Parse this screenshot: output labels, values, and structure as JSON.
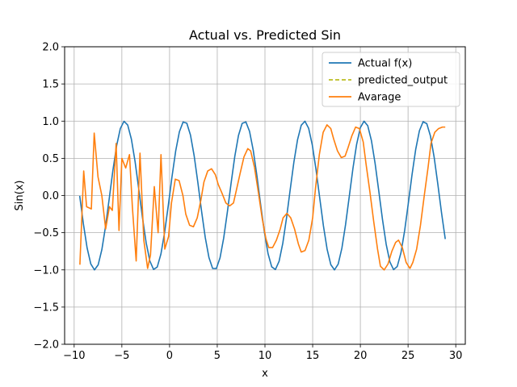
{
  "chart_data": {
    "type": "line",
    "title": "Actual vs. Predicted Sin",
    "xlabel": "x",
    "ylabel": "Sin(x)",
    "xlim": [
      -11.0,
      31.0
    ],
    "ylim": [
      -2.0,
      2.0
    ],
    "xticks": [
      -10,
      -5,
      0,
      5,
      10,
      15,
      20,
      25,
      30
    ],
    "yticks": [
      -2.0,
      -1.5,
      -1.0,
      -0.5,
      0.0,
      0.5,
      1.0,
      1.5,
      2.0
    ],
    "xtick_labels": [
      "−10",
      "−5",
      "0",
      "5",
      "10",
      "15",
      "20",
      "25",
      "30"
    ],
    "ytick_labels": [
      "−2.0",
      "−1.5",
      "−1.0",
      "−0.5",
      "0.0",
      "0.5",
      "1.0",
      "1.5",
      "2.0"
    ],
    "grid": true,
    "legend_position": "top-right",
    "series": [
      {
        "name": "Actual f(x)",
        "color": "#1f77b4",
        "style": "solid",
        "x_start": -9.42,
        "x_end": 28.9,
        "function": "sin"
      },
      {
        "name": "predicted_output",
        "color": "#bcbd22",
        "style": "dashed",
        "x": [],
        "y": []
      },
      {
        "name": "Avarage",
        "color": "#ff7f0e",
        "style": "solid",
        "x": [
          -9.4,
          -9.0,
          -8.7,
          -8.2,
          -7.9,
          -7.5,
          -7.1,
          -6.7,
          -6.3,
          -6.0,
          -5.6,
          -5.3,
          -5.0,
          -4.6,
          -4.2,
          -3.9,
          -3.5,
          -3.1,
          -2.7,
          -2.3,
          -2.0,
          -1.6,
          -1.2,
          -0.9,
          -0.5,
          -0.1,
          0.2,
          0.6,
          1.0,
          1.4,
          1.7,
          2.1,
          2.5,
          2.9,
          3.3,
          3.6,
          4.0,
          4.4,
          4.8,
          5.1,
          5.5,
          5.9,
          6.3,
          6.7,
          7.0,
          7.4,
          7.8,
          8.2,
          8.5,
          8.9,
          9.3,
          9.7,
          10.1,
          10.4,
          10.8,
          11.2,
          11.6,
          11.9,
          12.3,
          12.7,
          13.1,
          13.5,
          13.8,
          14.2,
          14.6,
          15.0,
          15.3,
          15.7,
          16.1,
          16.5,
          16.9,
          17.2,
          17.6,
          18.0,
          18.4,
          18.7,
          19.1,
          19.5,
          19.9,
          20.3,
          20.6,
          21.0,
          21.4,
          21.8,
          22.1,
          22.5,
          22.9,
          23.3,
          23.7,
          24.0,
          24.4,
          24.8,
          25.2,
          25.5,
          25.9,
          26.3,
          26.7,
          27.1,
          27.4,
          27.8,
          28.2,
          28.6,
          28.9
        ],
        "y": [
          -0.93,
          0.33,
          -0.15,
          -0.18,
          0.84,
          0.25,
          0.0,
          -0.45,
          -0.15,
          -0.2,
          0.7,
          -0.47,
          0.5,
          0.37,
          0.55,
          -0.15,
          -0.88,
          0.57,
          -0.6,
          -0.98,
          -0.8,
          0.12,
          -0.5,
          0.55,
          -0.72,
          -0.55,
          -0.1,
          0.22,
          0.2,
          0.0,
          -0.25,
          -0.4,
          -0.42,
          -0.3,
          -0.05,
          0.18,
          0.33,
          0.36,
          0.28,
          0.15,
          0.03,
          -0.1,
          -0.14,
          -0.1,
          0.07,
          0.3,
          0.52,
          0.63,
          0.6,
          0.38,
          0.05,
          -0.3,
          -0.58,
          -0.7,
          -0.7,
          -0.6,
          -0.45,
          -0.3,
          -0.24,
          -0.3,
          -0.45,
          -0.65,
          -0.76,
          -0.74,
          -0.6,
          -0.3,
          0.1,
          0.55,
          0.85,
          0.95,
          0.9,
          0.76,
          0.6,
          0.51,
          0.53,
          0.64,
          0.8,
          0.92,
          0.9,
          0.72,
          0.42,
          0.05,
          -0.35,
          -0.72,
          -0.95,
          -1.0,
          -0.92,
          -0.75,
          -0.63,
          -0.6,
          -0.7,
          -0.9,
          -0.98,
          -0.9,
          -0.72,
          -0.4,
          0.0,
          0.38,
          0.7,
          0.85,
          0.9,
          0.92,
          0.92
        ]
      }
    ]
  }
}
